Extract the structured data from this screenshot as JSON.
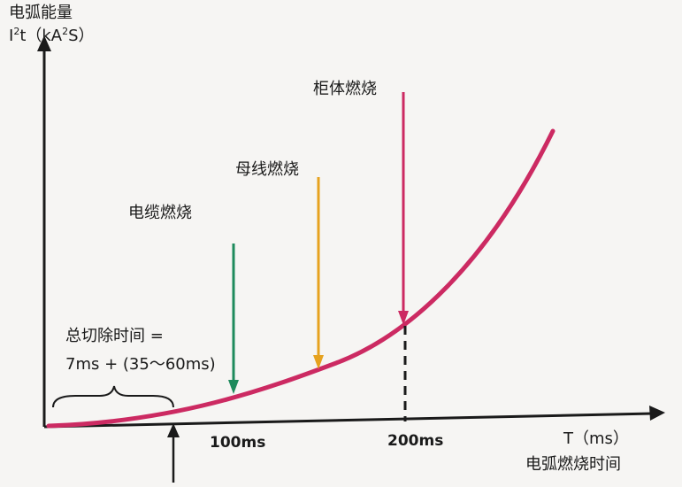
{
  "y_axis": {
    "title": "电弧能量",
    "unit_prefix": "I",
    "unit_sup1": "2",
    "unit_mid": "t（kA",
    "unit_sup2": "2",
    "unit_end": "S）"
  },
  "x_axis": {
    "unit": "T（ms）",
    "title": "电弧燃烧时间",
    "ticks": [
      "100ms",
      "200ms"
    ]
  },
  "clearing_time": {
    "line1": "总切除时间 =",
    "line2": "7ms + (35～60ms)"
  },
  "events": [
    {
      "label": "电缆燃烧",
      "color": "#1e8a5c"
    },
    {
      "label": "母线燃烧",
      "color": "#e6a21f"
    },
    {
      "label": "柜体燃烧",
      "color": "#cc2a62"
    }
  ],
  "colors": {
    "curve": "#cc2a62",
    "axis": "#1a1a1a"
  }
}
